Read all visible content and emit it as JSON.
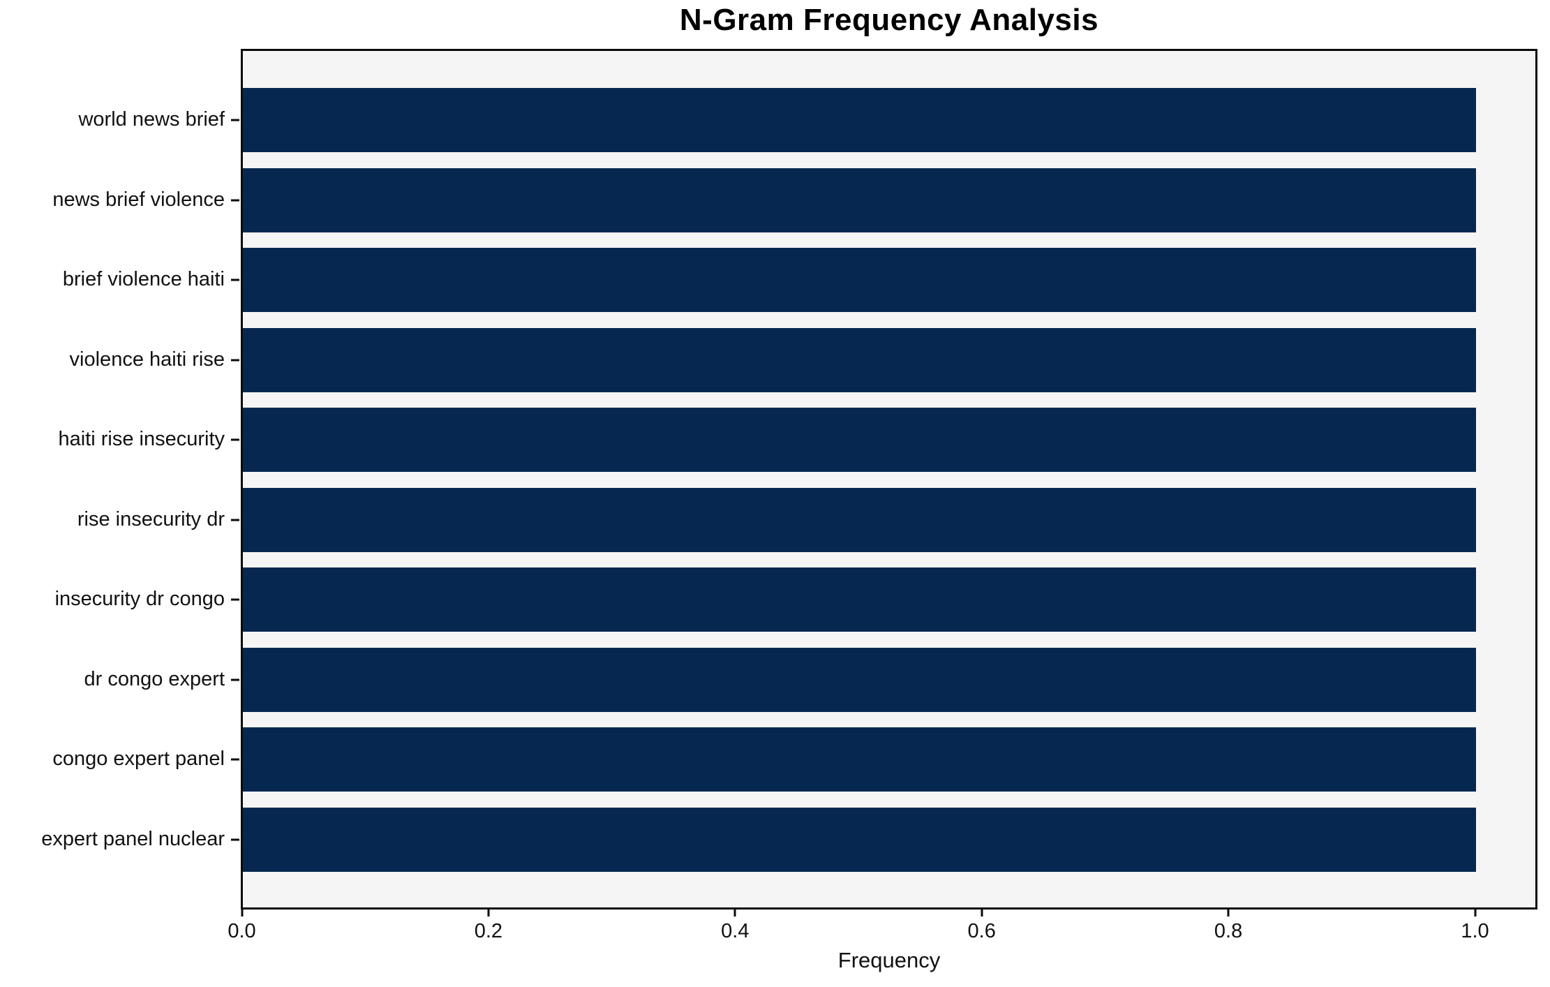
{
  "chart_data": {
    "type": "bar",
    "orientation": "horizontal",
    "title": "N-Gram Frequency Analysis",
    "xlabel": "Frequency",
    "ylabel": "",
    "categories": [
      "world news brief",
      "news brief violence",
      "brief violence haiti",
      "violence haiti rise",
      "haiti rise insecurity",
      "rise insecurity dr",
      "insecurity dr congo",
      "dr congo expert",
      "congo expert panel",
      "expert panel nuclear"
    ],
    "values": [
      1.0,
      1.0,
      1.0,
      1.0,
      1.0,
      1.0,
      1.0,
      1.0,
      1.0,
      1.0
    ],
    "xlim": [
      0.0,
      1.05
    ],
    "xticks": [
      0.0,
      0.2,
      0.4,
      0.6,
      0.8,
      1.0
    ],
    "xtick_labels": [
      "0.0",
      "0.2",
      "0.4",
      "0.6",
      "0.8",
      "1.0"
    ],
    "grid": false,
    "legend": false,
    "colors": {
      "bar": "#062850",
      "plot_background": "#f5f5f5",
      "figure_background": "#ffffff",
      "axis_frame": "#0c0c0c",
      "text": "#111111"
    }
  }
}
